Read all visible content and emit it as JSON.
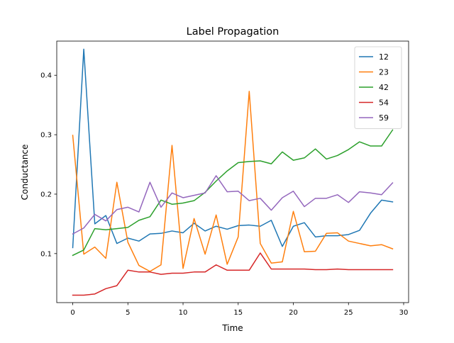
{
  "chart_data": {
    "type": "line",
    "title": "Label Propagation",
    "xlabel": "Time",
    "ylabel": "Conductance",
    "xlim": [
      -1.45,
      30.45
    ],
    "ylim": [
      0.0175,
      0.4575
    ],
    "xticks": [
      0,
      5,
      10,
      15,
      20,
      25,
      30
    ],
    "yticks": [
      0.1,
      0.2,
      0.3,
      0.4
    ],
    "ytick_labels": [
      "0.1",
      "0.2",
      "0.3",
      "0.4"
    ],
    "grid": false,
    "legend_position": "top-right",
    "x": [
      0,
      1,
      2,
      3,
      4,
      5,
      6,
      7,
      8,
      9,
      10,
      11,
      12,
      13,
      14,
      15,
      16,
      17,
      18,
      19,
      20,
      21,
      22,
      23,
      24,
      25,
      26,
      27,
      28,
      29
    ],
    "series": [
      {
        "name": "12",
        "color": "#1f77b4",
        "values": [
          0.11,
          0.444,
          0.15,
          0.164,
          0.117,
          0.126,
          0.121,
          0.133,
          0.134,
          0.138,
          0.135,
          0.151,
          0.138,
          0.146,
          0.141,
          0.147,
          0.148,
          0.146,
          0.156,
          0.112,
          0.146,
          0.152,
          0.128,
          0.13,
          0.13,
          0.132,
          0.139,
          0.168,
          0.19,
          0.187
        ]
      },
      {
        "name": "23",
        "color": "#ff7f0e",
        "values": [
          0.299,
          0.099,
          0.111,
          0.092,
          0.22,
          0.119,
          0.08,
          0.07,
          0.081,
          0.282,
          0.075,
          0.159,
          0.099,
          0.165,
          0.082,
          0.128,
          0.373,
          0.117,
          0.084,
          0.086,
          0.171,
          0.103,
          0.104,
          0.134,
          0.135,
          0.121,
          0.117,
          0.113,
          0.115,
          0.108
        ]
      },
      {
        "name": "42",
        "color": "#2ca02c",
        "values": [
          0.097,
          0.106,
          0.142,
          0.14,
          0.142,
          0.144,
          0.156,
          0.162,
          0.19,
          0.183,
          0.185,
          0.189,
          0.203,
          0.222,
          0.239,
          0.253,
          0.255,
          0.256,
          0.251,
          0.271,
          0.257,
          0.261,
          0.276,
          0.259,
          0.265,
          0.275,
          0.288,
          0.281,
          0.281,
          0.308
        ]
      },
      {
        "name": "54",
        "color": "#d62728",
        "values": [
          0.03,
          0.03,
          0.032,
          0.041,
          0.046,
          0.072,
          0.069,
          0.069,
          0.065,
          0.067,
          0.067,
          0.069,
          0.069,
          0.081,
          0.072,
          0.072,
          0.072,
          0.101,
          0.074,
          0.074,
          0.074,
          0.074,
          0.073,
          0.073,
          0.074,
          0.073,
          0.073,
          0.073,
          0.073,
          0.073
        ]
      },
      {
        "name": "59",
        "color": "#9467bd",
        "values": [
          0.133,
          0.143,
          0.166,
          0.155,
          0.174,
          0.178,
          0.17,
          0.22,
          0.178,
          0.202,
          0.194,
          0.198,
          0.202,
          0.231,
          0.204,
          0.205,
          0.189,
          0.193,
          0.173,
          0.194,
          0.205,
          0.179,
          0.193,
          0.193,
          0.199,
          0.186,
          0.204,
          0.202,
          0.199,
          0.219
        ]
      }
    ]
  }
}
